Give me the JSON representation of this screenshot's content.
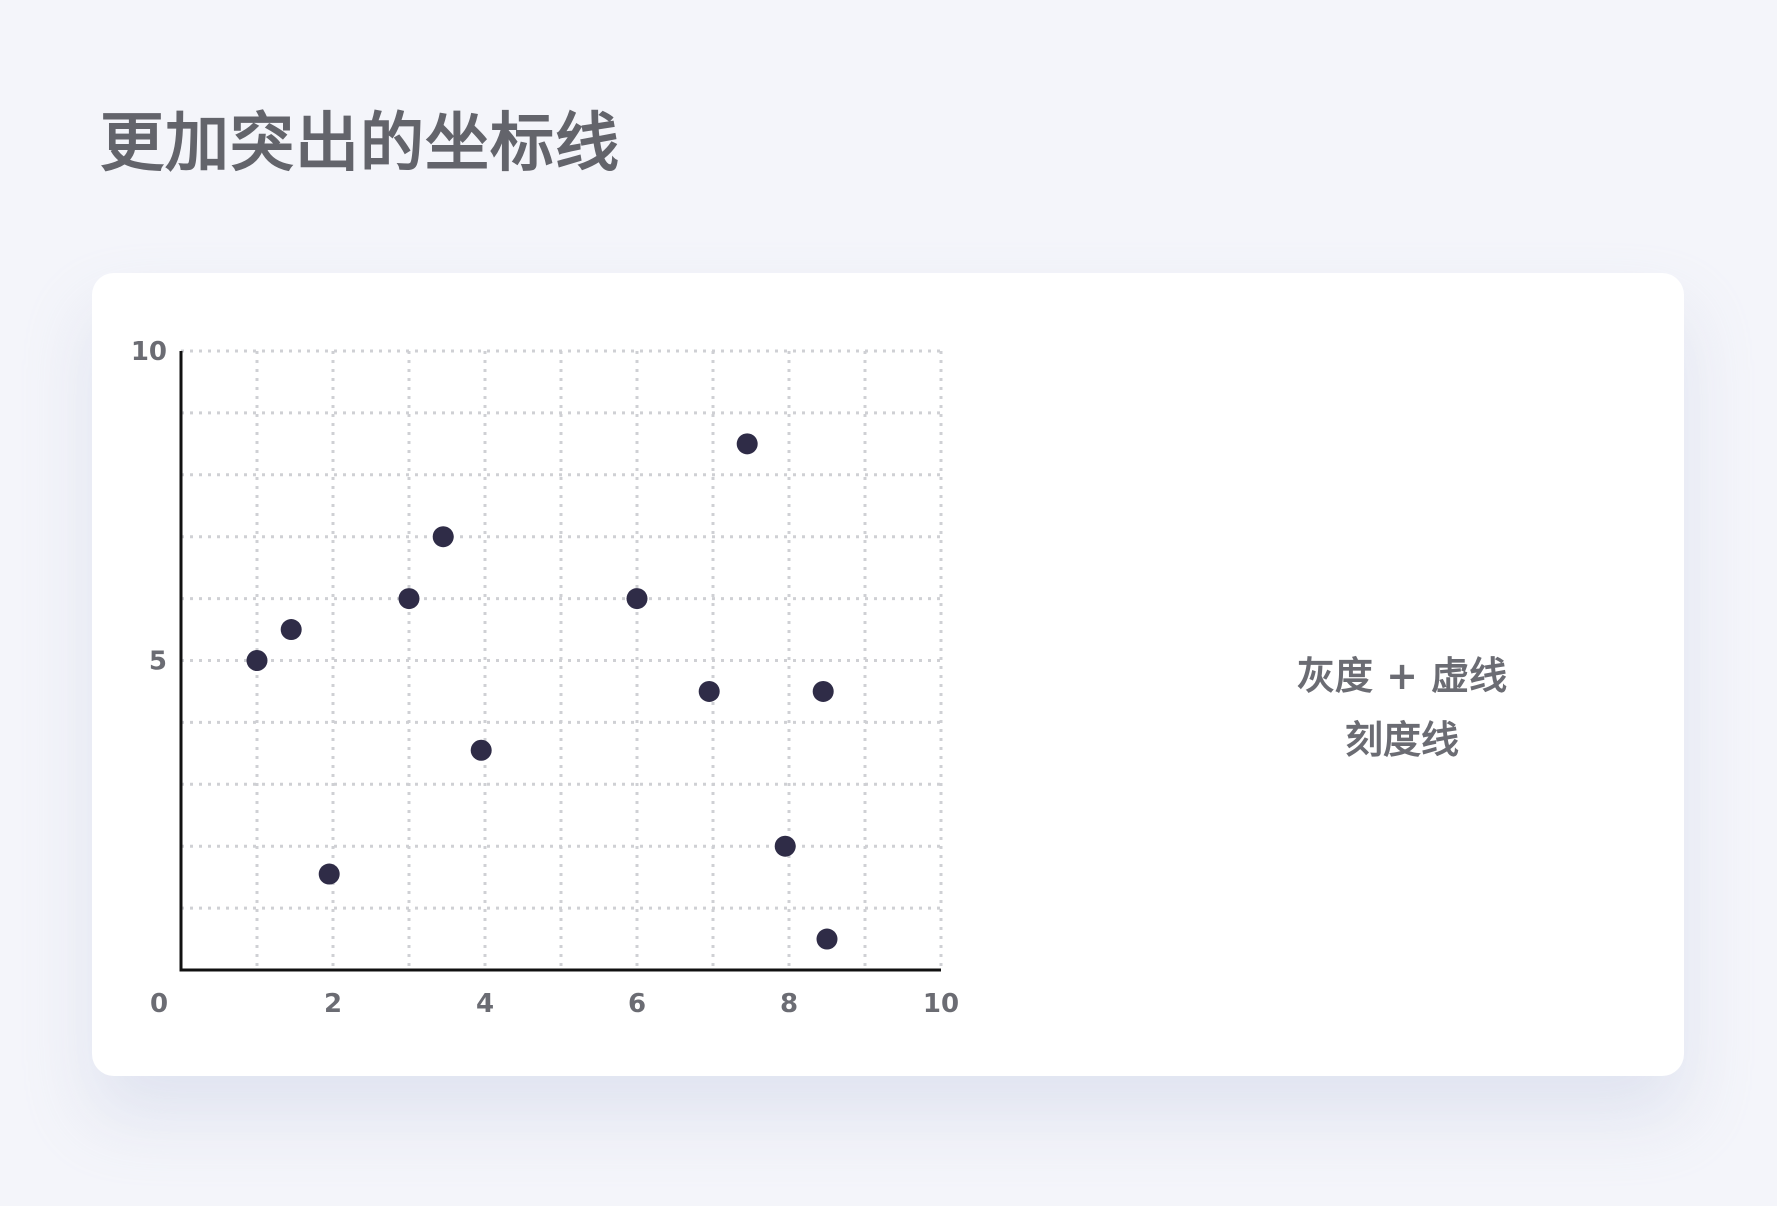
{
  "page": {
    "title": "更加突出的坐标线"
  },
  "annotation": {
    "line1": "灰度 + 虚线",
    "line2": "刻度线"
  },
  "colors": {
    "background": "#f4f5fa",
    "card": "#ffffff",
    "point": "#2f2c47",
    "axis": "#111111",
    "grid": "#cfd0d4",
    "text": "#6b6c73"
  },
  "chart_data": {
    "type": "scatter",
    "xlim": [
      0,
      10
    ],
    "ylim": [
      0,
      10
    ],
    "grid": true,
    "grid_style": "dotted",
    "x_minor_step": 1,
    "y_minor_step": 1,
    "x_ticks": [
      {
        "value": 0,
        "label": "0"
      },
      {
        "value": 2,
        "label": "2"
      },
      {
        "value": 4,
        "label": "4"
      },
      {
        "value": 6,
        "label": "6"
      },
      {
        "value": 8,
        "label": "8"
      },
      {
        "value": 10,
        "label": "10"
      }
    ],
    "y_ticks": [
      {
        "value": 5,
        "label": "5"
      },
      {
        "value": 10,
        "label": "10"
      }
    ],
    "points": [
      {
        "x": 1.0,
        "y": 5.0
      },
      {
        "x": 1.45,
        "y": 5.5
      },
      {
        "x": 1.95,
        "y": 1.55
      },
      {
        "x": 3.0,
        "y": 6.0
      },
      {
        "x": 3.45,
        "y": 7.0
      },
      {
        "x": 3.95,
        "y": 3.55
      },
      {
        "x": 6.0,
        "y": 6.0
      },
      {
        "x": 6.95,
        "y": 4.5
      },
      {
        "x": 7.45,
        "y": 8.5
      },
      {
        "x": 7.95,
        "y": 2.0
      },
      {
        "x": 8.45,
        "y": 4.5
      },
      {
        "x": 8.5,
        "y": 0.5
      }
    ]
  }
}
